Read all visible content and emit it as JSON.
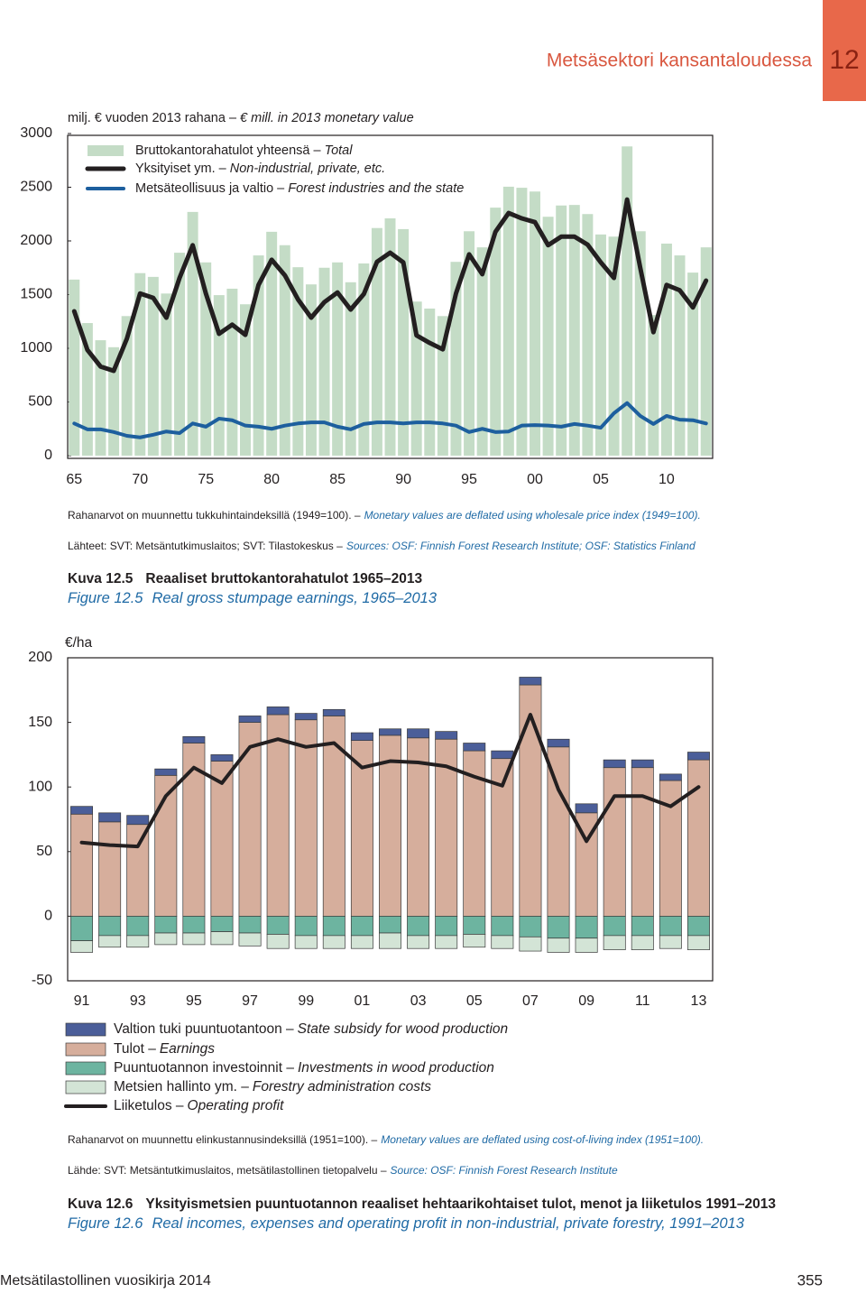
{
  "header": {
    "section_title": "Metsäsektori kansantaloudessa",
    "chapter": "12"
  },
  "chart_data": [
    {
      "type": "bar",
      "y_label": "milj. € vuoden 2013 rahana –",
      "y_label_en": "€ mill. in 2013 monetary value",
      "categories": [
        "65",
        null,
        null,
        null,
        null,
        "70",
        null,
        null,
        null,
        null,
        "75",
        null,
        null,
        null,
        null,
        "80",
        null,
        null,
        null,
        null,
        "85",
        null,
        null,
        null,
        null,
        "90",
        null,
        null,
        null,
        null,
        "95",
        null,
        null,
        null,
        null,
        "00",
        null,
        null,
        null,
        null,
        "05",
        null,
        null,
        null,
        null,
        "10",
        null,
        null,
        null
      ],
      "ylim": [
        0,
        3000
      ],
      "yticks": [
        0,
        500,
        1000,
        1500,
        2000,
        2500,
        3000
      ],
      "series": [
        {
          "name": "Bruttokantorahatulot yhteensä –",
          "name_en": "Total",
          "type": "bar",
          "color": "#c4dcc6",
          "values": [
            1640,
            1235,
            1075,
            1010,
            1300,
            1700,
            1665,
            1510,
            1890,
            2270,
            1800,
            1495,
            1555,
            1410,
            1865,
            2085,
            1960,
            1755,
            1595,
            1750,
            1800,
            1615,
            1790,
            2120,
            2210,
            2110,
            1435,
            1370,
            1300,
            1805,
            2090,
            1940,
            2310,
            2505,
            2495,
            2460,
            2225,
            2330,
            2335,
            2250,
            2060,
            2040,
            2880,
            2090,
            1310,
            1975,
            1865,
            1705,
            1940
          ]
        },
        {
          "name": "Yksityiset ym. –",
          "name_en": "Non-industrial, private, etc.",
          "type": "line",
          "color": "#231f20",
          "values": [
            1345,
            985,
            830,
            790,
            1090,
            1510,
            1470,
            1285,
            1655,
            1960,
            1510,
            1135,
            1220,
            1125,
            1590,
            1825,
            1680,
            1455,
            1285,
            1430,
            1520,
            1360,
            1505,
            1805,
            1890,
            1800,
            1120,
            1050,
            990,
            1510,
            1875,
            1690,
            2085,
            2260,
            2210,
            2175,
            1960,
            2040,
            2040,
            1965,
            1800,
            1655,
            2385,
            1750,
            1150,
            1590,
            1540,
            1380,
            1630
          ]
        },
        {
          "name": "Metsäteollisuus ja valtio –",
          "name_en": "Forest industries and the state",
          "type": "line",
          "color": "#1d5f9e",
          "values": [
            300,
            245,
            245,
            220,
            185,
            170,
            195,
            225,
            210,
            300,
            270,
            345,
            330,
            280,
            270,
            250,
            280,
            300,
            310,
            310,
            270,
            245,
            295,
            310,
            310,
            300,
            310,
            310,
            300,
            280,
            220,
            250,
            220,
            225,
            280,
            285,
            280,
            270,
            295,
            280,
            260,
            395,
            490,
            370,
            295,
            370,
            335,
            330,
            300
          ]
        }
      ],
      "notes": [
        {
          "fi": "Rahanarvot on muunnettu tukkuhintaindeksillä (1949=100). –",
          "en": "Monetary values are deflated using wholesale price index (1949=100)."
        },
        {
          "fi": "Lähteet: SVT: Metsäntutkimuslaitos; SVT: Tilastokeskus –",
          "en": "Sources: OSF: Finnish Forest Research Institute; OSF: Statistics Finland"
        }
      ],
      "caption": {
        "label_fi": "Kuva 12.5",
        "title_fi": "Reaaliset bruttokantorahatulot 1965–2013",
        "label_en": "Figure 12.5",
        "title_en": "Real gross stumpage earnings, 1965–2013"
      }
    },
    {
      "type": "stacked_bar",
      "y_label": "€/ha",
      "categories": [
        "91",
        null,
        "93",
        null,
        "95",
        null,
        "97",
        null,
        "99",
        null,
        "01",
        null,
        "03",
        null,
        "05",
        null,
        "07",
        null,
        "09",
        null,
        "11",
        null,
        "13"
      ],
      "ylim": [
        -50,
        200
      ],
      "yticks": [
        -50,
        0,
        50,
        100,
        150,
        200
      ],
      "series": [
        {
          "name": "Valtion tuki puuntuotantoon –",
          "name_en": "State subsidy for wood production",
          "type": "bar",
          "color": "#4b5e99",
          "values": [
            6,
            7,
            7,
            5,
            5,
            5,
            5,
            6,
            5,
            5,
            6,
            5,
            7,
            6,
            6,
            6,
            6,
            6,
            7,
            6,
            6,
            5,
            6
          ]
        },
        {
          "name": "Tulot –",
          "name_en": "Earnings",
          "type": "bar",
          "color": "#d6ae9c",
          "values": [
            79,
            73,
            71,
            109,
            134,
            120,
            150,
            156,
            152,
            155,
            136,
            140,
            138,
            137,
            128,
            122,
            179,
            131,
            80,
            115,
            115,
            105,
            121
          ]
        },
        {
          "name": "Puuntuotannon investoinnit –",
          "name_en": "Investments in wood production",
          "type": "bar",
          "color": "#6db4a0",
          "values": [
            -19,
            -15,
            -15,
            -13,
            -13,
            -12,
            -13,
            -14,
            -15,
            -15,
            -15,
            -13,
            -15,
            -15,
            -14,
            -15,
            -16,
            -17,
            -17,
            -15,
            -15,
            -15,
            -15
          ]
        },
        {
          "name": "Metsien hallinto ym. –",
          "name_en": "Forestry administration costs",
          "type": "bar",
          "color": "#d3e4d6",
          "values": [
            -9,
            -9,
            -9,
            -9,
            -9,
            -10,
            -10,
            -11,
            -10,
            -10,
            -10,
            -12,
            -10,
            -10,
            -10,
            -10,
            -11,
            -11,
            -11,
            -11,
            -11,
            -10,
            -11
          ]
        },
        {
          "name": "Liiketulos –",
          "name_en": "Operating profit",
          "type": "line",
          "color": "#231f20",
          "values": [
            57,
            55,
            54,
            93,
            115,
            103,
            131,
            137,
            131,
            134,
            115,
            120,
            119,
            116,
            108,
            101,
            156,
            98,
            58,
            93,
            93,
            85,
            100
          ]
        }
      ],
      "notes": [
        {
          "fi": "Rahanarvot on muunnettu elinkustannusindeksillä (1951=100). –",
          "en": "Monetary values are deflated using cost-of-living index (1951=100)."
        },
        {
          "fi": "Lähde: SVT: Metsäntutkimuslaitos, metsätilastollinen tietopalvelu –",
          "en": "Source: OSF: Finnish Forest Research Institute"
        }
      ],
      "caption": {
        "label_fi": "Kuva 12.6",
        "title_fi": "Yksityismetsien puuntuotannon reaaliset hehtaarikohtaiset tulot, menot ja liiketulos 1991–2013",
        "label_en": "Figure 12.6",
        "title_en": "Real incomes, expenses and operating profit in non-industrial, private forestry, 1991–2013"
      }
    }
  ],
  "footer": {
    "publication": "Metsätilastollinen vuosikirja 2014",
    "page": "355"
  }
}
